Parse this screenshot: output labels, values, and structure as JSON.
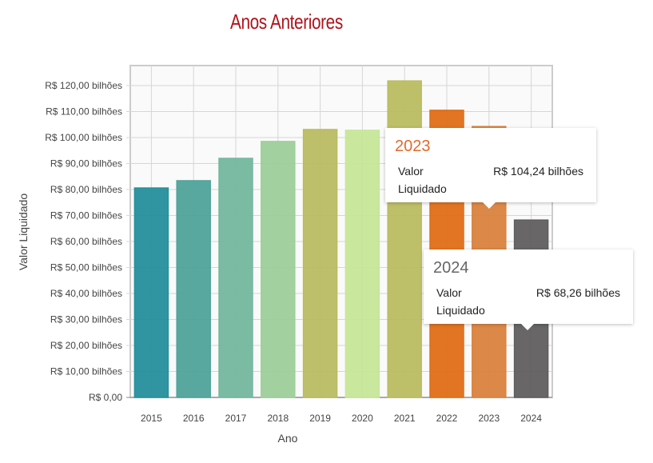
{
  "chart_data": {
    "type": "bar",
    "title": "Anos Anteriores",
    "xlabel": "Ano",
    "ylabel": "Valor Liquidado",
    "categories": [
      "2015",
      "2016",
      "2017",
      "2018",
      "2019",
      "2020",
      "2021",
      "2022",
      "2023",
      "2024"
    ],
    "values": [
      80.6,
      83.4,
      92.0,
      98.5,
      103.1,
      102.8,
      121.8,
      110.5,
      104.24,
      68.26
    ],
    "unit": "R$ bilhões",
    "ylim": [
      0,
      127.7
    ],
    "yticks": [
      "R$ 0,00",
      "R$ 10,00 bilhões",
      "R$ 20,00 bilhões",
      "R$ 30,00 bilhões",
      "R$ 40,00 bilhões",
      "R$ 50,00 bilhões",
      "R$ 60,00 bilhões",
      "R$ 70,00 bilhões",
      "R$ 80,00 bilhões",
      "R$ 90,00 bilhões",
      "R$ 100,00 bilhões",
      "R$ 110,00 bilhões",
      "R$ 120,00 bilhões"
    ],
    "colors": [
      "#2a9fae",
      "#5ab5ab",
      "#82ccb0",
      "#b0e5ab",
      "#cfd16e",
      "#ddffaa",
      "#d0d16c",
      "#fa7a1a",
      "#f29046",
      "#6a6868"
    ],
    "grid": true,
    "tooltips": [
      {
        "year": "2023",
        "label_line1": "Valor",
        "label_line2": "Liquidado",
        "value": "R$ 104,24 bilhões",
        "color": "#e06a2c"
      },
      {
        "year": "2024",
        "label_line1": "Valor",
        "label_line2": "Liquidado",
        "value": "R$ 68,26 bilhões",
        "color": "#666666"
      }
    ]
  }
}
